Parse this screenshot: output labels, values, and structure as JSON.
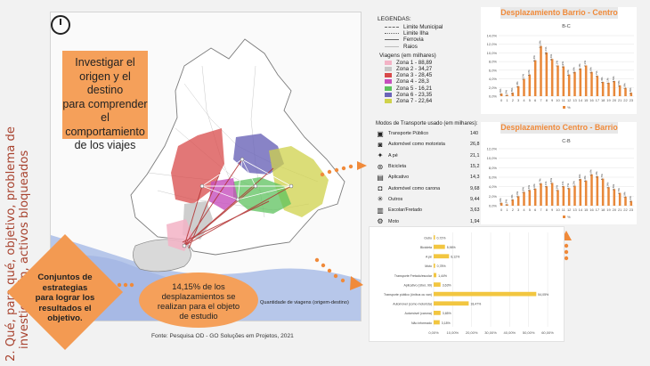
{
  "vertical_title": [
    "2. Qué, para qué, objetivo, problema de",
    "investigación, activos bloqueados"
  ],
  "callouts": {
    "investigar": [
      "Investigar el",
      "origen y el destino",
      "para comprender",
      "el",
      "comportamiento",
      "de los viajes"
    ],
    "conjuntos": [
      "Conjuntos de",
      "estrategias",
      "para lograr los",
      "resultados el",
      "objetivo."
    ],
    "porcentaje": [
      "14,15% de los",
      "desplazamientos se",
      "realizan para el objeto",
      "de estudio"
    ]
  },
  "map": {
    "label": "Quantidade de viagens (origem-destino)",
    "source": "Fonte: Pesquisa OD - GO Soluções em Projetos, 2021"
  },
  "legend": {
    "title": "LEGENDAS:",
    "lines": [
      "Limite Municipal",
      "Limite Ilha",
      "Ferrovia",
      "Raios"
    ],
    "zones_title": "Viagens (em milhares)",
    "zones": [
      {
        "label": "Zona 1 - 88,89",
        "color": "#f3b3c6"
      },
      {
        "label": "Zona 2 - 34,27",
        "color": "#c6c6c6"
      },
      {
        "label": "Zona 3 - 28,45",
        "color": "#d84a4a"
      },
      {
        "label": "Zona 4 - 28,3",
        "color": "#c64fbd"
      },
      {
        "label": "Zona 5 - 16,21",
        "color": "#5dc25d"
      },
      {
        "label": "Zona 6 - 23,35",
        "color": "#6a64b8"
      },
      {
        "label": "Zona 7 - 22,64",
        "color": "#cfd24b"
      }
    ]
  },
  "modes": {
    "title": "Modos de Transporte usado (em milhares):",
    "items": [
      {
        "icon": "bus-icon",
        "glyph": "▣",
        "label": "Transporte Público",
        "value": "140"
      },
      {
        "icon": "car-icon",
        "glyph": "◙",
        "label": "Automóvel como motorista",
        "value": "26,8"
      },
      {
        "icon": "walk-icon",
        "glyph": "✦",
        "label": "A pé",
        "value": "21,1"
      },
      {
        "icon": "bicycle-icon",
        "glyph": "⊛",
        "label": "Bicicleta",
        "value": "15,2"
      },
      {
        "icon": "app-car-icon",
        "glyph": "▤",
        "label": "Aplicativo",
        "value": "14,3"
      },
      {
        "icon": "passenger-icon",
        "glyph": "◘",
        "label": "Automóvel como carona",
        "value": "9,68"
      },
      {
        "icon": "others-icon",
        "glyph": "✳",
        "label": "Outros",
        "value": "9,44"
      },
      {
        "icon": "school-bus-icon",
        "glyph": "▥",
        "label": "Escolar/Fretado",
        "value": "3,63"
      },
      {
        "icon": "motorcycle-icon",
        "glyph": "⚙",
        "label": "Moto",
        "value": "1,94"
      }
    ]
  },
  "colors": {
    "bar": "#e8883a",
    "hbar": "#f2c640",
    "accent": "#f5a05a",
    "title": "#f08a3a"
  },
  "chart_data": [
    {
      "type": "bar",
      "title": "Desplazamiento Barrio - Centro",
      "subtitle": "B-C",
      "categories": [
        "0",
        "1",
        "2",
        "3",
        "4",
        "5",
        "6",
        "7",
        "8",
        "9",
        "10",
        "11",
        "12",
        "13",
        "14",
        "15",
        "16",
        "17",
        "18",
        "19",
        "20",
        "21",
        "22",
        "23"
      ],
      "values": [
        0.6,
        0.3,
        0.8,
        2.3,
        4.0,
        5.0,
        8.3,
        11.6,
        10.1,
        8.6,
        7.1,
        6.9,
        5.0,
        5.6,
        6.4,
        7.1,
        5.6,
        4.7,
        3.3,
        3.1,
        3.5,
        2.5,
        1.9,
        0.8
      ],
      "value_labels": [
        "0,6%",
        "0,3%",
        "0,8%",
        "2,3%",
        "4,0%",
        "5,0%",
        "8,3%",
        "11,6%",
        "10,1%",
        "8,6%",
        "7,1%",
        "6,9%",
        "5,0%",
        "5,6%",
        "6,4%",
        "7,1%",
        "5,6%",
        "4,7%",
        "3,3%",
        "3,1%",
        "3,5%",
        "2,5%",
        "1,9%",
        "0,8%"
      ],
      "ylim": [
        0,
        14
      ],
      "yticks": [
        "0,0%",
        "2,0%",
        "4,0%",
        "6,0%",
        "8,0%",
        "10,0%",
        "12,0%",
        "14,0%"
      ],
      "legend": "%"
    },
    {
      "type": "bar",
      "title": "Desplazamiento Centro - Barrio",
      "subtitle": "C-B",
      "categories": [
        "0",
        "1",
        "2",
        "3",
        "4",
        "5",
        "6",
        "7",
        "8",
        "9",
        "10",
        "11",
        "12",
        "13",
        "14",
        "15",
        "16",
        "17",
        "18",
        "19",
        "20",
        "21",
        "22",
        "23"
      ],
      "values": [
        0.6,
        0.3,
        1.3,
        2.0,
        2.9,
        3.3,
        3.6,
        4.7,
        4.1,
        4.8,
        3.3,
        4.1,
        3.7,
        4.2,
        5.6,
        5.3,
        6.6,
        6.2,
        5.7,
        3.9,
        3.5,
        2.7,
        1.9,
        1.0
      ],
      "value_labels": [
        "0,6%",
        "0,3%",
        "1,3%",
        "2,0%",
        "2,9%",
        "3,3%",
        "3,6%",
        "4,7%",
        "4,1%",
        "4,8%",
        "3,3%",
        "4,1%",
        "3,7%",
        "4,2%",
        "5,6%",
        "5,3%",
        "6,6%",
        "6,2%",
        "5,7%",
        "3,9%",
        "3,5%",
        "2,7%",
        "1,9%",
        "1,0%"
      ],
      "ylim": [
        0,
        12
      ],
      "yticks": [
        "0,0%",
        "2,0%",
        "4,0%",
        "6,0%",
        "8,0%",
        "10,0%",
        "12,0%"
      ],
      "legend": "%"
    },
    {
      "type": "bar",
      "orientation": "horizontal",
      "categories": [
        "Outro",
        "Bicicleta",
        "A pé",
        "Moto",
        "Transporte Fretado/escolar",
        "Aplicativo (Uber, 99)",
        "Transporte público (ônibus ou van)",
        "Automóvel (como motorista)",
        "Automóvel (carona)",
        "Não informado"
      ],
      "values": [
        0.72,
        5.96,
        8.12,
        0.78,
        1.44,
        3.63,
        54.05,
        18.47,
        3.65,
        3.18
      ],
      "value_labels": [
        "0,72%",
        "5,96%",
        "8,12%",
        "0,78%",
        "1,44%",
        "3,63%",
        "54,05%",
        "18,47%",
        "3,65%",
        "3,18%"
      ],
      "xlim": [
        0,
        60
      ],
      "xticks": [
        "0,00%",
        "10,00%",
        "20,00%",
        "30,00%",
        "40,00%",
        "50,00%",
        "60,00%"
      ]
    }
  ]
}
